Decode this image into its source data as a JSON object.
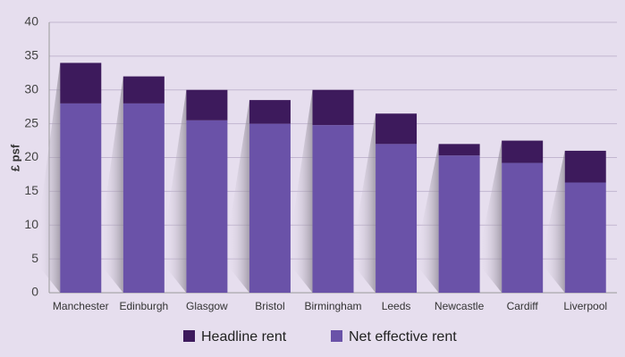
{
  "chart_data": {
    "type": "stacked_bar",
    "y_label": "£ psf",
    "categories": [
      "Manchester",
      "Edinburgh",
      "Glasgow",
      "Bristol",
      "Birmingham",
      "Leeds",
      "Newcastle",
      "Cardiff",
      "Liverpool"
    ],
    "series": [
      {
        "name": "Net effective rent",
        "color": "#6a52a8",
        "values": [
          28,
          28,
          25.5,
          25,
          24.8,
          22,
          20.3,
          19.2,
          16.3
        ]
      },
      {
        "name": "Headline rent",
        "color": "#3d1a5c",
        "values": [
          6,
          4,
          4.5,
          3.5,
          5.2,
          4.5,
          1.7,
          3.3,
          4.7
        ]
      }
    ],
    "ylim": [
      0,
      40
    ],
    "yticks": [
      0,
      5,
      10,
      15,
      20,
      25,
      30,
      35,
      40
    ],
    "grid": true
  }
}
